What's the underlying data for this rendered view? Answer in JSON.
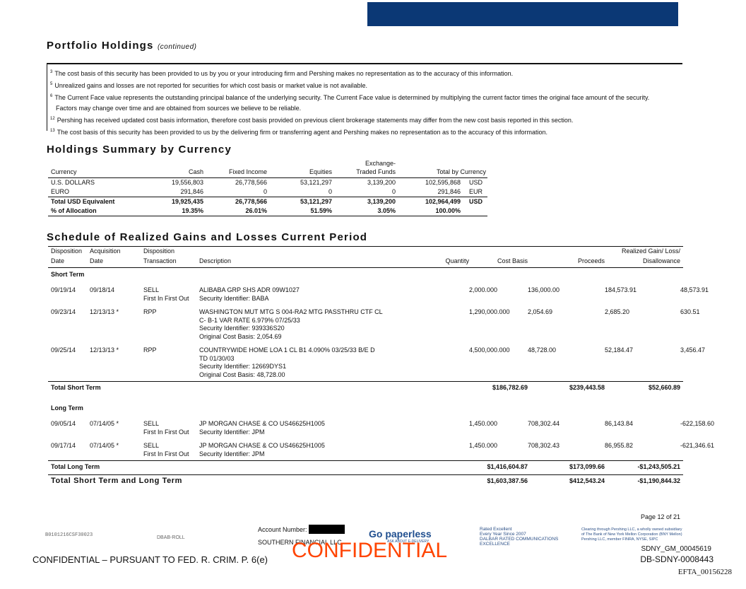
{
  "header": {
    "title": "Portfolio Holdings",
    "subtitle": "(continued)"
  },
  "footnotes": [
    {
      "mark": "3",
      "text": "The cost basis of this security has been provided to us by you or your introducing firm and Pershing makes no representation as to the accuracy of this information."
    },
    {
      "mark": "5",
      "text": "Unrealized gains and losses are not reported for securities for which cost basis or market value is not available."
    },
    {
      "mark": "6",
      "text": "The Current Face value represents the outstanding principal balance of the underlying security. The Current Face value is determined by multiplying the current factor times the original face amount of the security. Factors may change over time and are obtained from sources we believe to be reliable."
    },
    {
      "mark": "12",
      "text": "Pershing has received updated cost basis information, therefore cost basis provided on previous client brokerage statements may differ from the new cost basis reported in this section."
    },
    {
      "mark": "13",
      "text": "The cost basis of this security has been provided to us by the delivering firm or transferring agent and Pershing makes no representation as to the accuracy of this information."
    }
  ],
  "summary": {
    "title": "Holdings Summary by Currency",
    "columns": [
      "Currency",
      "Cash",
      "Fixed Income",
      "Equities",
      "Exchange-Traded Funds",
      "Total by Currency"
    ],
    "rows": [
      [
        "U.S. DOLLARS",
        "19,556,803",
        "26,778,566",
        "53,121,297",
        "3,139,200",
        "102,595,868",
        "USD"
      ],
      [
        "EURO",
        "291,846",
        "0",
        "0",
        "0",
        "291,846",
        "EUR"
      ],
      [
        "Total USD Equivalent",
        "19,925,435",
        "26,778,566",
        "53,121,297",
        "3,139,200",
        "102,964,499",
        "USD"
      ],
      [
        "% of Allocation",
        "19.35%",
        "26.01%",
        "51.59%",
        "3.05%",
        "100.00%"
      ]
    ]
  },
  "realized": {
    "title": "Schedule of Realized Gains and Losses Current Period",
    "columns": [
      [
        "Disposition",
        "Date"
      ],
      [
        "Acquisition",
        "Date"
      ],
      [
        "Disposition",
        "Transaction"
      ],
      [
        "Description"
      ],
      [
        "Quantity"
      ],
      [
        "Cost Basis"
      ],
      [
        "Proceeds"
      ],
      [
        "Realized Gain/ Loss/",
        "Disallowance"
      ]
    ],
    "sections": [
      {
        "name": "Short Term",
        "rows": [
          {
            "disposition": "09/19/14",
            "acquisition": "09/18/14",
            "transaction": [
              "SELL",
              "First In First Out"
            ],
            "description": [
              "ALIBABA GRP SHS ADR 09W1027",
              "Security Identifier: BABA"
            ],
            "quantity": "2,000.000",
            "cost": "136,000.00",
            "proceeds": "184,573.91",
            "gain": "48,573.91"
          },
          {
            "disposition": "09/23/14",
            "acquisition": "12/13/13 *",
            "transaction": [
              "RPP"
            ],
            "description": [
              "WASHINGTON MUT MTG S 004-RA2 MTG PASSTHRU CTF CL",
              "C- B-1 VAR RATE 6.979% 07/25/33",
              "Security Identifier: 939336S20",
              "Original Cost Basis: 2,054.69"
            ],
            "quantity": "1,290,000.000",
            "cost": "2,054.69",
            "proceeds": "2,685.20",
            "gain": "630.51"
          },
          {
            "disposition": "09/25/14",
            "acquisition": "12/13/13 *",
            "transaction": [
              "RPP"
            ],
            "description": [
              "COUNTRYWIDE HOME LOA 1 CL B1 4.090% 03/25/33 B/E D",
              "TD 01/30/03",
              "Security Identifier: 12669DYS1",
              "Original Cost Basis: 48,728.00"
            ],
            "quantity": "4,500,000.000",
            "cost": "48,728.00",
            "proceeds": "52,184.47",
            "gain": "3,456.47"
          }
        ],
        "total": {
          "label": "Total Short Term",
          "cost": "$186,782.69",
          "proceeds": "$239,443.58",
          "gain": "$52,660.89"
        }
      },
      {
        "name": "Long Term",
        "rows": [
          {
            "disposition": "09/05/14",
            "acquisition": "07/14/05 *",
            "transaction": [
              "SELL",
              "First In First Out"
            ],
            "description": [
              "JP MORGAN CHASE & CO US46625H1005",
              "Security Identifier: JPM"
            ],
            "quantity": "1,450.000",
            "cost": "708,302.44",
            "proceeds": "86,143.84",
            "gain": "-622,158.60"
          },
          {
            "disposition": "09/17/14",
            "acquisition": "07/14/05 *",
            "transaction": [
              "SELL",
              "First In First Out"
            ],
            "description": [
              "JP MORGAN CHASE & CO US46625H1005",
              "Security Identifier: JPM"
            ],
            "quantity": "1,450.000",
            "cost": "708,302.43",
            "proceeds": "86,955.82",
            "gain": "-621,346.61"
          }
        ],
        "total": {
          "label": "Total Long Term",
          "cost": "$1,416,604.87",
          "proceeds": "$173,099.66",
          "gain": "-$1,243,505.21"
        }
      }
    ],
    "grand_total": {
      "label": "Total Short Term and Long Term",
      "cost": "$1,603,387.56",
      "proceeds": "$412,543.24",
      "gain": "-$1,190,844.32"
    }
  },
  "footer": {
    "page": "Page 12 of 21",
    "code": "B0101216CSF30023",
    "roll": "DBAB-ROLL",
    "account_label": "Account Number:",
    "account_name": "SOUTHERN FINANCIAL LLC",
    "paperless": "Go paperless",
    "paperless_sub": "ASK ABOUT E-DELIVERY",
    "dalbar": [
      "Rated Excellent",
      "Every Year Since 2007",
      "DALBAR RATED COMMUNICATIONS",
      "EXCELLENCE"
    ],
    "clearing": [
      "Clearing through Pershing LLC, a wholly owned subsidiary",
      "of The Bank of New York Mellon Corporation (BNY Mellon)",
      "Pershing LLC, member FINRA, NYSE, SIPC"
    ],
    "confidential": "CONFIDENTIAL",
    "legend": "CONFIDENTIAL – PURSUANT TO FED. R. CRIM. P. 6(e)",
    "ids": [
      "SDNY_GM_00045619",
      "DB-SDNY-0008443",
      "EFTA_00156228"
    ]
  }
}
